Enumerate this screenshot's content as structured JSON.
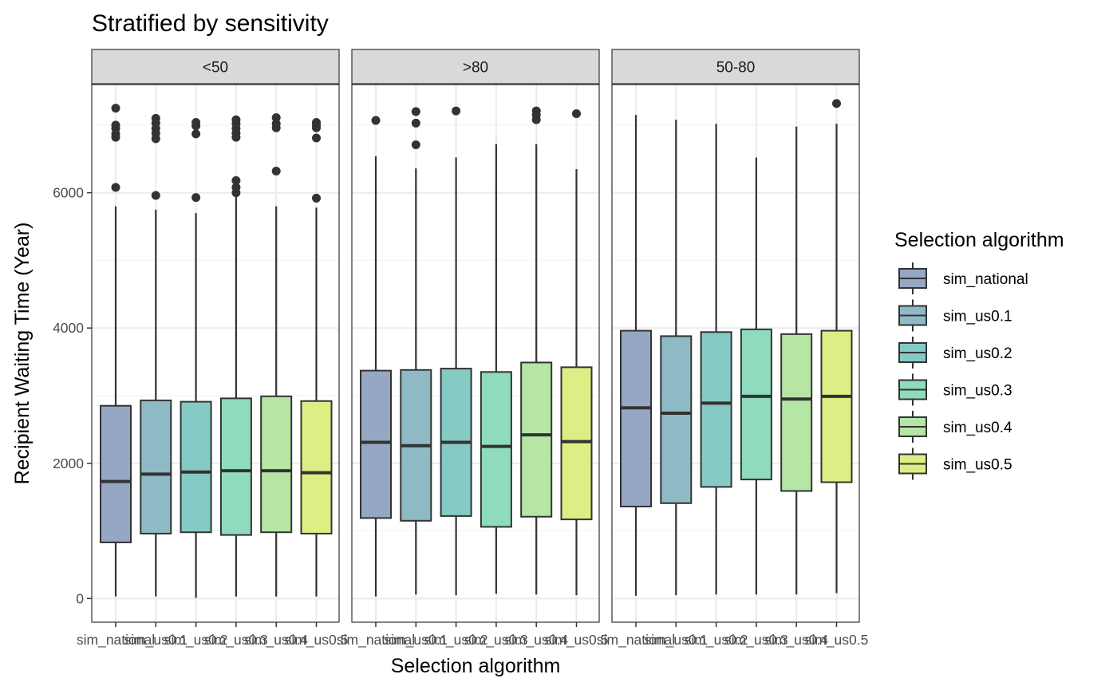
{
  "chart_data": {
    "type": "boxplot",
    "title": "Stratified by sensitivity",
    "xlabel": "Selection algorithm",
    "ylabel": "Recipient Waiting Time (Year)",
    "ylim": [
      -350,
      7600
    ],
    "yticks": [
      0,
      2000,
      4000,
      6000
    ],
    "grid": true,
    "legend": {
      "title": "Selection algorithm",
      "position": "right",
      "entries": [
        "sim_national",
        "sim_us0.1",
        "sim_us0.2",
        "sim_us0.3",
        "sim_us0.4",
        "sim_us0.5"
      ]
    },
    "categories": [
      "sim_national",
      "sim_us0.1",
      "sim_us0.2",
      "sim_us0.3",
      "sim_us0.4",
      "sim_us0.5"
    ],
    "colors": [
      "#95a7c3",
      "#8dbac4",
      "#85cac4",
      "#8fdbbd",
      "#b5e6a3",
      "#dcef85"
    ],
    "facets": [
      {
        "label": "<50",
        "boxes": [
          {
            "min": 30,
            "q1": 830,
            "median": 1730,
            "q3": 2850,
            "max": 5800,
            "outliers": [
              6080,
              6820,
              6870,
              6950,
              7000,
              7250
            ]
          },
          {
            "min": 30,
            "q1": 960,
            "median": 1840,
            "q3": 2930,
            "max": 5750,
            "outliers": [
              5960,
              6800,
              6880,
              6950,
              7030,
              7100
            ]
          },
          {
            "min": 10,
            "q1": 980,
            "median": 1870,
            "q3": 2910,
            "max": 5700,
            "outliers": [
              5930,
              6870,
              6990,
              7040
            ]
          },
          {
            "min": 30,
            "q1": 940,
            "median": 1890,
            "q3": 2960,
            "max": 5950,
            "outliers": [
              6000,
              6080,
              6180,
              6820,
              6880,
              6950,
              7020,
              7080
            ]
          },
          {
            "min": 30,
            "q1": 980,
            "median": 1890,
            "q3": 2990,
            "max": 5800,
            "outliers": [
              6320,
              6960,
              7020,
              7110
            ]
          },
          {
            "min": 30,
            "q1": 960,
            "median": 1860,
            "q3": 2920,
            "max": 5780,
            "outliers": [
              5920,
              6810,
              6960,
              7000,
              7040
            ]
          }
        ]
      },
      {
        "label": ">80",
        "boxes": [
          {
            "min": 30,
            "q1": 1190,
            "median": 2310,
            "q3": 3370,
            "max": 6540,
            "outliers": [
              7070
            ]
          },
          {
            "min": 60,
            "q1": 1150,
            "median": 2260,
            "q3": 3380,
            "max": 6360,
            "outliers": [
              6710,
              7030,
              7200
            ]
          },
          {
            "min": 50,
            "q1": 1220,
            "median": 2310,
            "q3": 3400,
            "max": 6520,
            "outliers": [
              7210
            ]
          },
          {
            "min": 70,
            "q1": 1060,
            "median": 2250,
            "q3": 3350,
            "max": 6720,
            "outliers": []
          },
          {
            "min": 60,
            "q1": 1210,
            "median": 2420,
            "q3": 3490,
            "max": 6720,
            "outliers": [
              7080,
              7150,
              7210
            ]
          },
          {
            "min": 50,
            "q1": 1170,
            "median": 2320,
            "q3": 3420,
            "max": 6350,
            "outliers": [
              7170
            ]
          }
        ]
      },
      {
        "label": "50-80",
        "boxes": [
          {
            "min": 40,
            "q1": 1360,
            "median": 2820,
            "q3": 3960,
            "max": 7150,
            "outliers": []
          },
          {
            "min": 50,
            "q1": 1410,
            "median": 2740,
            "q3": 3880,
            "max": 7080,
            "outliers": []
          },
          {
            "min": 60,
            "q1": 1650,
            "median": 2890,
            "q3": 3940,
            "max": 7020,
            "outliers": []
          },
          {
            "min": 60,
            "q1": 1760,
            "median": 2990,
            "q3": 3980,
            "max": 6520,
            "outliers": []
          },
          {
            "min": 60,
            "q1": 1590,
            "median": 2950,
            "q3": 3910,
            "max": 6980,
            "outliers": []
          },
          {
            "min": 80,
            "q1": 1720,
            "median": 2990,
            "q3": 3960,
            "max": 7020,
            "outliers": [
              7320
            ]
          }
        ]
      }
    ]
  }
}
